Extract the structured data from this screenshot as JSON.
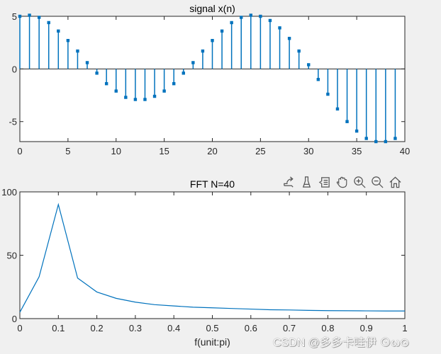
{
  "figure": {
    "background": "#f0f0f0",
    "line_color": "#0072bd"
  },
  "toolbar": {
    "items": [
      {
        "name": "export",
        "icon": "export-icon"
      },
      {
        "name": "brush",
        "icon": "brush-icon"
      },
      {
        "name": "data-tips",
        "icon": "datatip-icon"
      },
      {
        "name": "pan",
        "icon": "pan-hand-icon"
      },
      {
        "name": "zoom-in",
        "icon": "zoom-in-icon"
      },
      {
        "name": "zoom-out",
        "icon": "zoom-out-icon"
      },
      {
        "name": "restore-view",
        "icon": "home-icon"
      }
    ]
  },
  "watermark": "CSDN @多多卡哇伊 ⊙ω⊙",
  "chart_data": [
    {
      "type": "stem",
      "title": "signal x(n)",
      "xlabel": "",
      "ylabel": "",
      "xlim": [
        0,
        40
      ],
      "ylim": [
        -6.9,
        5
      ],
      "xticks": [
        0,
        5,
        10,
        15,
        20,
        25,
        30,
        35,
        40
      ],
      "yticks": [
        -5,
        0,
        5
      ],
      "grid": false,
      "x": [
        0,
        1,
        2,
        3,
        4,
        5,
        6,
        7,
        8,
        9,
        10,
        11,
        12,
        13,
        14,
        15,
        16,
        17,
        18,
        19,
        20,
        21,
        22,
        23,
        24,
        25,
        26,
        27,
        28,
        29,
        30,
        31,
        32,
        33,
        34,
        35,
        36,
        37,
        38,
        39
      ],
      "values": [
        5.0,
        5.1,
        4.9,
        4.4,
        3.6,
        2.7,
        1.7,
        0.6,
        -0.4,
        -1.4,
        -2.1,
        -2.7,
        -2.9,
        -2.9,
        -2.6,
        -2.1,
        -1.4,
        -0.4,
        0.6,
        1.7,
        2.7,
        3.6,
        4.4,
        4.9,
        5.1,
        5.0,
        4.6,
        3.9,
        2.9,
        1.7,
        0.4,
        -1.0,
        -2.4,
        -3.8,
        -5.0,
        -5.9,
        -6.6,
        -6.9,
        -6.9,
        -6.6
      ]
    },
    {
      "type": "line",
      "title": "FFT N=40",
      "xlabel": "f(unit:pi)",
      "ylabel": "",
      "xlim": [
        0,
        1
      ],
      "ylim": [
        0,
        100
      ],
      "xticks": [
        0,
        0.1,
        0.2,
        0.3,
        0.4,
        0.5,
        0.6,
        0.7,
        0.8,
        0.9,
        1
      ],
      "yticks": [
        0,
        50,
        100
      ],
      "grid": false,
      "x": [
        0,
        0.05,
        0.1,
        0.15,
        0.2,
        0.25,
        0.3,
        0.35,
        0.4,
        0.45,
        0.5,
        0.55,
        0.6,
        0.65,
        0.7,
        0.75,
        0.8,
        0.85,
        0.9,
        0.95,
        1.0
      ],
      "values": [
        5,
        33,
        90,
        32,
        21,
        16,
        13,
        11,
        10,
        9,
        8.5,
        8,
        7.5,
        7,
        6.8,
        6.5,
        6.3,
        6.2,
        6.1,
        6.0,
        6.0
      ]
    }
  ]
}
